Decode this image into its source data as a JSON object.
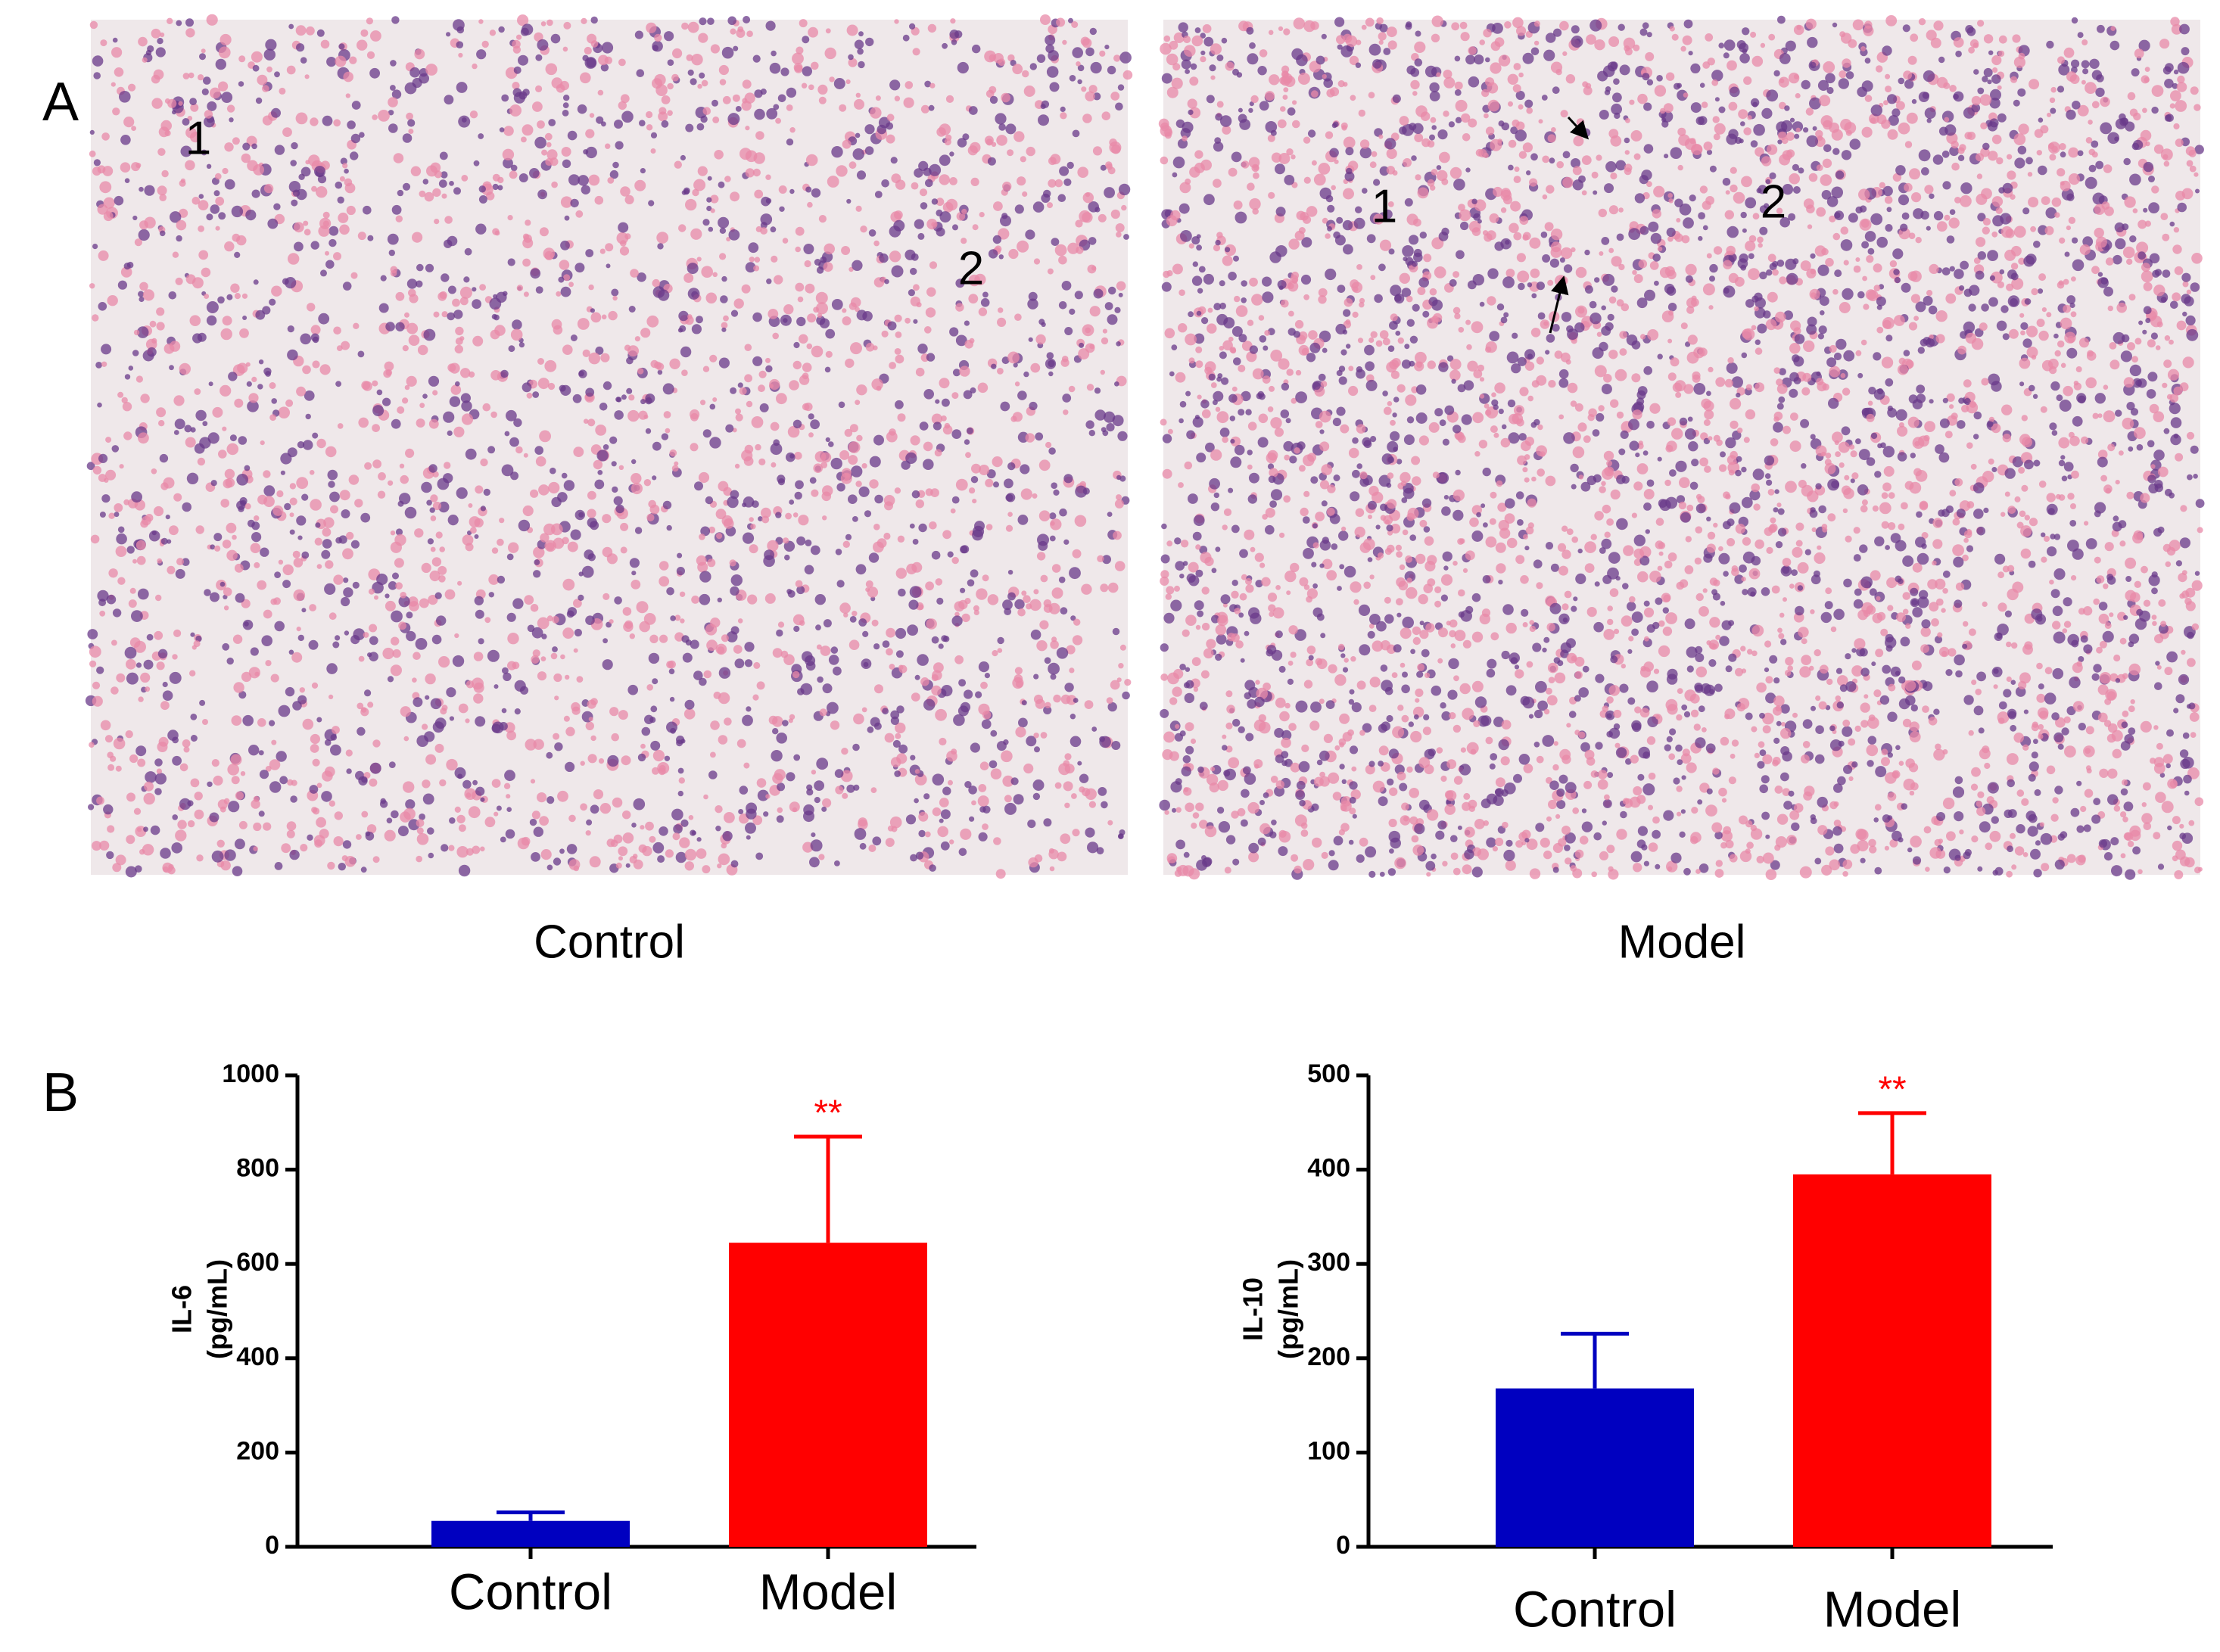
{
  "panel_a": {
    "label": "A",
    "images": [
      {
        "caption": "Control",
        "markers": [
          "1",
          "2"
        ]
      },
      {
        "caption": "Model",
        "markers": [
          "1",
          "2"
        ]
      }
    ]
  },
  "panel_b": {
    "label": "B"
  },
  "chart_data": [
    {
      "type": "bar",
      "ylabel": [
        "IL-6",
        "(pg/mL)"
      ],
      "categories": [
        "Control",
        "Model"
      ],
      "values": [
        55,
        645
      ],
      "errors": [
        18,
        225
      ],
      "colors": [
        "#0000c0",
        "#ff0000"
      ],
      "significance": [
        null,
        "**"
      ],
      "significance_color": "#ff0000",
      "ylim": [
        0,
        1000
      ],
      "yticks": [
        0,
        200,
        400,
        600,
        800,
        1000
      ]
    },
    {
      "type": "bar",
      "ylabel": [
        "IL-10",
        "(pg/mL)"
      ],
      "categories": [
        "Control",
        "Model"
      ],
      "values": [
        168,
        395
      ],
      "errors": [
        58,
        65
      ],
      "colors": [
        "#0000c0",
        "#ff0000"
      ],
      "significance": [
        null,
        "**"
      ],
      "significance_color": "#ff0000",
      "ylim": [
        0,
        500
      ],
      "yticks": [
        0,
        100,
        200,
        300,
        400,
        500
      ]
    }
  ]
}
